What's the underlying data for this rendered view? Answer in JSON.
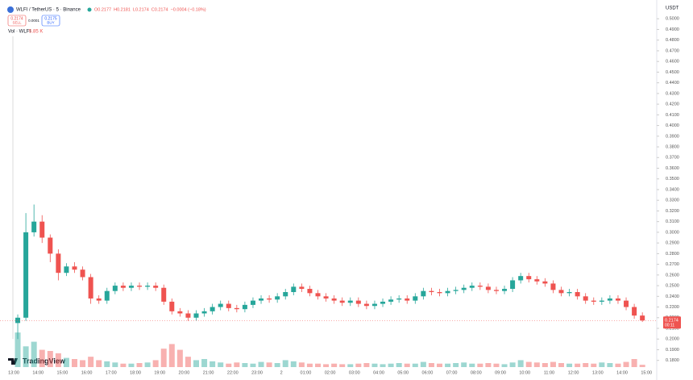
{
  "chart_data": {
    "type": "candlestick",
    "title": "WLFI / TetherUS · 5 · Binance",
    "legend": [
      "O0.2177",
      "H0.2181",
      "L0.2174",
      "C0.2174",
      "−0.0004 (−0.18%)"
    ],
    "sell": {
      "price": "0.2174",
      "label": "SELL"
    },
    "spread": "0.0001",
    "buy": {
      "price": "0.2175",
      "label": "BUY"
    },
    "volume_title": "Vol · WLFI",
    "volume_value": "5.85 K",
    "currency": "USDT",
    "countdown": "00:11",
    "brand": "TradingView",
    "x_labels": [
      "13:00",
      "14:00",
      "15:00",
      "16:00",
      "17:00",
      "18:00",
      "19:00",
      "20:00",
      "21:00",
      "22:00",
      "23:00",
      "2",
      "01:00",
      "02:00",
      "03:00",
      "04:00",
      "05:00",
      "06:00",
      "07:00",
      "08:00",
      "09:00",
      "10:00",
      "11:00",
      "12:00",
      "13:00",
      "14:00",
      "15:00"
    ],
    "up_color": "#26a69a",
    "down_color": "#ef5350",
    "grid": false,
    "ylim": [
      0.176,
      0.5085
    ],
    "yticks": [
      {
        "value": 0.18,
        "label": "0.1800"
      },
      {
        "value": 0.19,
        "label": "0.1900"
      },
      {
        "value": 0.2,
        "label": "0.2000"
      },
      {
        "value": 0.21,
        "label": "0.2100"
      },
      {
        "value": 0.22,
        "label": "0.2200"
      },
      {
        "value": 0.23,
        "label": "0.2300"
      },
      {
        "value": 0.24,
        "label": "0.2400"
      },
      {
        "value": 0.25,
        "label": "0.2500"
      },
      {
        "value": 0.26,
        "label": "0.2600"
      },
      {
        "value": 0.27,
        "label": "0.2700"
      },
      {
        "value": 0.28,
        "label": "0.2800"
      },
      {
        "value": 0.29,
        "label": "0.2900"
      },
      {
        "value": 0.3,
        "label": "0.3000"
      },
      {
        "value": 0.31,
        "label": "0.3100"
      },
      {
        "value": 0.32,
        "label": "0.3200"
      },
      {
        "value": 0.33,
        "label": "0.3300"
      },
      {
        "value": 0.34,
        "label": "0.3400"
      },
      {
        "value": 0.35,
        "label": "0.3500"
      },
      {
        "value": 0.36,
        "label": "0.3600"
      },
      {
        "value": 0.37,
        "label": "0.3700"
      },
      {
        "value": 0.38,
        "label": "0.3800"
      },
      {
        "value": 0.39,
        "label": "0.3900"
      },
      {
        "value": 0.4,
        "label": "0.4000"
      },
      {
        "value": 0.41,
        "label": "0.4100"
      },
      {
        "value": 0.42,
        "label": "0.4200"
      },
      {
        "value": 0.43,
        "label": "0.4300"
      },
      {
        "value": 0.44,
        "label": "0.4400"
      },
      {
        "value": 0.45,
        "label": "0.4500"
      },
      {
        "value": 0.46,
        "label": "0.4600"
      },
      {
        "value": 0.47,
        "label": "0.4700"
      },
      {
        "value": 0.48,
        "label": "0.4800"
      },
      {
        "value": 0.49,
        "label": "0.4900"
      },
      {
        "value": 0.5,
        "label": "0.5000"
      }
    ],
    "open": [
      0.215,
      0.22,
      0.3,
      0.31,
      0.295,
      0.28,
      0.262,
      0.268,
      0.265,
      0.258,
      0.238,
      0.236,
      0.245,
      0.25,
      0.248,
      0.25,
      0.249,
      0.25,
      0.248,
      0.235,
      0.226,
      0.224,
      0.22,
      0.224,
      0.226,
      0.23,
      0.233,
      0.229,
      0.228,
      0.232,
      0.236,
      0.238,
      0.237,
      0.24,
      0.244,
      0.249,
      0.247,
      0.243,
      0.24,
      0.238,
      0.236,
      0.234,
      0.236,
      0.233,
      0.231,
      0.233,
      0.235,
      0.237,
      0.238,
      0.236,
      0.24,
      0.245,
      0.244,
      0.243,
      0.245,
      0.246,
      0.248,
      0.25,
      0.249,
      0.246,
      0.245,
      0.247,
      0.255,
      0.259,
      0.256,
      0.254,
      0.252,
      0.246,
      0.243,
      0.244,
      0.24,
      0.236,
      0.235,
      0.236,
      0.238,
      0.236,
      0.23,
      0.222
    ],
    "high": [
      0.223,
      0.318,
      0.326,
      0.316,
      0.298,
      0.284,
      0.271,
      0.272,
      0.268,
      0.261,
      0.241,
      0.248,
      0.253,
      0.253,
      0.253,
      0.253,
      0.253,
      0.253,
      0.251,
      0.238,
      0.229,
      0.227,
      0.227,
      0.229,
      0.233,
      0.236,
      0.236,
      0.232,
      0.235,
      0.239,
      0.241,
      0.241,
      0.243,
      0.247,
      0.252,
      0.252,
      0.25,
      0.246,
      0.243,
      0.241,
      0.239,
      0.239,
      0.239,
      0.236,
      0.236,
      0.238,
      0.24,
      0.241,
      0.241,
      0.243,
      0.248,
      0.248,
      0.247,
      0.248,
      0.249,
      0.251,
      0.253,
      0.253,
      0.252,
      0.249,
      0.25,
      0.258,
      0.262,
      0.262,
      0.259,
      0.257,
      0.255,
      0.249,
      0.247,
      0.247,
      0.243,
      0.239,
      0.239,
      0.241,
      0.241,
      0.239,
      0.233,
      0.225
    ],
    "low": [
      0.2,
      0.217,
      0.296,
      0.29,
      0.272,
      0.255,
      0.259,
      0.262,
      0.255,
      0.233,
      0.233,
      0.233,
      0.242,
      0.245,
      0.245,
      0.246,
      0.246,
      0.245,
      0.232,
      0.223,
      0.221,
      0.217,
      0.217,
      0.221,
      0.223,
      0.227,
      0.226,
      0.225,
      0.225,
      0.229,
      0.233,
      0.234,
      0.234,
      0.237,
      0.241,
      0.244,
      0.24,
      0.237,
      0.235,
      0.233,
      0.231,
      0.231,
      0.23,
      0.228,
      0.228,
      0.23,
      0.232,
      0.234,
      0.233,
      0.233,
      0.237,
      0.241,
      0.24,
      0.24,
      0.242,
      0.243,
      0.245,
      0.246,
      0.243,
      0.242,
      0.242,
      0.244,
      0.252,
      0.253,
      0.251,
      0.249,
      0.243,
      0.24,
      0.24,
      0.237,
      0.233,
      0.232,
      0.232,
      0.233,
      0.233,
      0.227,
      0.219,
      0.216
    ],
    "close": [
      0.22,
      0.3,
      0.31,
      0.295,
      0.28,
      0.262,
      0.268,
      0.265,
      0.258,
      0.238,
      0.236,
      0.245,
      0.25,
      0.248,
      0.25,
      0.249,
      0.25,
      0.248,
      0.235,
      0.226,
      0.224,
      0.22,
      0.224,
      0.226,
      0.23,
      0.233,
      0.229,
      0.228,
      0.232,
      0.236,
      0.238,
      0.237,
      0.24,
      0.244,
      0.249,
      0.247,
      0.243,
      0.24,
      0.238,
      0.236,
      0.234,
      0.236,
      0.233,
      0.231,
      0.233,
      0.235,
      0.237,
      0.238,
      0.236,
      0.24,
      0.245,
      0.244,
      0.243,
      0.245,
      0.246,
      0.248,
      0.25,
      0.249,
      0.246,
      0.245,
      0.247,
      0.255,
      0.259,
      0.256,
      0.254,
      0.252,
      0.246,
      0.243,
      0.244,
      0.24,
      0.236,
      0.235,
      0.236,
      0.238,
      0.236,
      0.23,
      0.222,
      0.2174
    ],
    "volume": [
      300,
      180,
      220,
      150,
      140,
      120,
      80,
      70,
      60,
      90,
      60,
      50,
      40,
      30,
      30,
      35,
      40,
      60,
      160,
      200,
      150,
      90,
      60,
      70,
      50,
      40,
      30,
      40,
      35,
      30,
      45,
      40,
      35,
      60,
      50,
      40,
      30,
      30,
      25,
      30,
      25,
      25,
      30,
      35,
      30,
      25,
      30,
      35,
      30,
      30,
      45,
      35,
      30,
      30,
      35,
      40,
      30,
      30,
      35,
      30,
      25,
      40,
      60,
      45,
      40,
      35,
      45,
      35,
      30,
      30,
      35,
      30,
      40,
      35,
      30,
      45,
      70,
      20
    ],
    "volume_lim": [
      0,
      700
    ]
  }
}
